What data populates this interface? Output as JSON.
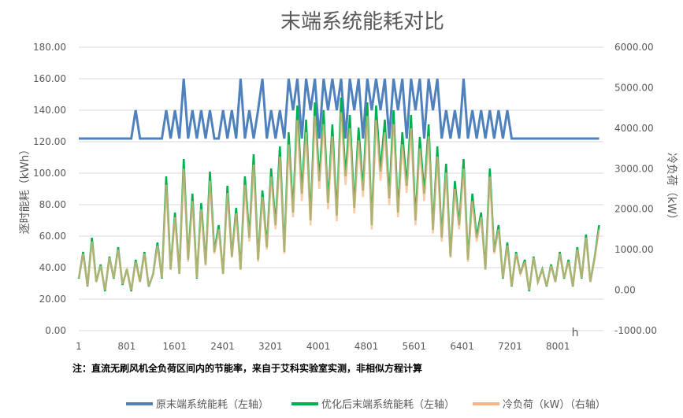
{
  "chart_data": {
    "type": "line",
    "title": "末端系统能耗对比",
    "ylabel": "逐时能耗（kWh）",
    "y2label": "冷负荷（kW）",
    "xlabel": "h",
    "ylim": [
      0,
      180
    ],
    "y2lim": [
      -1000,
      6000
    ],
    "yticks": [
      "0.00",
      "20.00",
      "40.00",
      "60.00",
      "80.00",
      "100.00",
      "120.00",
      "140.00",
      "160.00",
      "180.00"
    ],
    "y2ticks": [
      "-1000.00",
      "0.00",
      "1000.00",
      "2000.00",
      "3000.00",
      "4000.00",
      "5000.00",
      "6000.00"
    ],
    "xticks": [
      "1",
      "801",
      "1601",
      "2401",
      "3201",
      "4001",
      "4801",
      "5601",
      "6401",
      "7201",
      "8001"
    ],
    "xmax": 8760,
    "grid": true,
    "legend_position": "bottom",
    "note": "注：直流无刷风机全负荷区间内的节能率，来自于艾科实验室实测，非相似方程计算",
    "x_start": 1,
    "x_step": 73,
    "series": [
      {
        "name": "原末端系统能耗（左轴）",
        "axis": "left",
        "color": "#4f81bd",
        "values": [
          122,
          122,
          122,
          122,
          122,
          122,
          122,
          122,
          122,
          122,
          122,
          122,
          122,
          140,
          122,
          122,
          122,
          122,
          122,
          122,
          140,
          122,
          140,
          122,
          160,
          122,
          140,
          122,
          140,
          122,
          140,
          122,
          122,
          140,
          122,
          140,
          122,
          160,
          122,
          140,
          122,
          140,
          160,
          122,
          140,
          122,
          140,
          122,
          160,
          140,
          160,
          122,
          160,
          140,
          160,
          122,
          160,
          140,
          160,
          140,
          160,
          122,
          160,
          140,
          160,
          122,
          160,
          140,
          160,
          140,
          160,
          122,
          160,
          140,
          160,
          122,
          160,
          140,
          160,
          122,
          160,
          140,
          160,
          122,
          140,
          122,
          140,
          122,
          160,
          122,
          140,
          122,
          140,
          122,
          140,
          122,
          140,
          122,
          140,
          122,
          122,
          122,
          122,
          122,
          122,
          122,
          122,
          122,
          122,
          122,
          122,
          122,
          122,
          122,
          122,
          122,
          122,
          122,
          122,
          122
        ]
      },
      {
        "name": "优化后末端系统能耗（左轴）",
        "axis": "left",
        "color": "#00b050",
        "values": [
          33,
          50,
          28,
          59,
          31,
          42,
          25,
          47,
          33,
          53,
          29,
          39,
          25,
          45,
          31,
          50,
          28,
          36,
          56,
          33,
          98,
          39,
          75,
          36,
          109,
          45,
          87,
          33,
          81,
          42,
          101,
          50,
          67,
          36,
          92,
          47,
          78,
          39,
          98,
          59,
          112,
          45,
          89,
          53,
          103,
          67,
          117,
          50,
          126,
          75,
          143,
          87,
          134,
          70,
          145,
          95,
          140,
          81,
          131,
          73,
          148,
          98,
          137,
          78,
          129,
          89,
          145,
          67,
          143,
          101,
          134,
          84,
          140,
          75,
          126,
          92,
          137,
          70,
          123,
          87,
          131,
          64,
          117,
          59,
          106,
          47,
          95,
          67,
          109,
          45,
          87,
          59,
          75,
          39,
          103,
          50,
          67,
          33,
          56,
          28,
          50,
          36,
          45,
          25,
          47,
          31,
          39,
          28,
          42,
          31,
          50,
          33,
          45,
          28,
          53,
          33,
          61,
          31,
          47,
          67
        ]
      },
      {
        "name": "冷负荷（kW）（右轴）",
        "axis": "right",
        "color": "#f9b382",
        "values": [
          300,
          900,
          100,
          1200,
          200,
          600,
          0,
          800,
          300,
          1000,
          150,
          500,
          0,
          700,
          200,
          900,
          100,
          400,
          1100,
          300,
          2600,
          500,
          1800,
          400,
          3000,
          700,
          2200,
          300,
          2000,
          600,
          2700,
          900,
          1500,
          400,
          2400,
          800,
          1900,
          500,
          2600,
          1200,
          3100,
          700,
          2300,
          1000,
          2800,
          1500,
          3300,
          900,
          3600,
          1800,
          4200,
          2200,
          3900,
          1600,
          4300,
          2500,
          4100,
          2000,
          3800,
          1700,
          4400,
          2600,
          4000,
          1900,
          3700,
          2300,
          4300,
          1500,
          4200,
          2700,
          3900,
          2100,
          4100,
          1800,
          3600,
          2400,
          4000,
          1600,
          3500,
          2200,
          3800,
          1400,
          3300,
          1200,
          2900,
          800,
          2500,
          1500,
          3000,
          700,
          2200,
          1200,
          1800,
          500,
          2800,
          900,
          1500,
          300,
          1100,
          100,
          900,
          400,
          700,
          0,
          800,
          200,
          500,
          100,
          600,
          200,
          900,
          300,
          700,
          100,
          1000,
          300,
          1300,
          200,
          800,
          1500
        ]
      }
    ]
  }
}
